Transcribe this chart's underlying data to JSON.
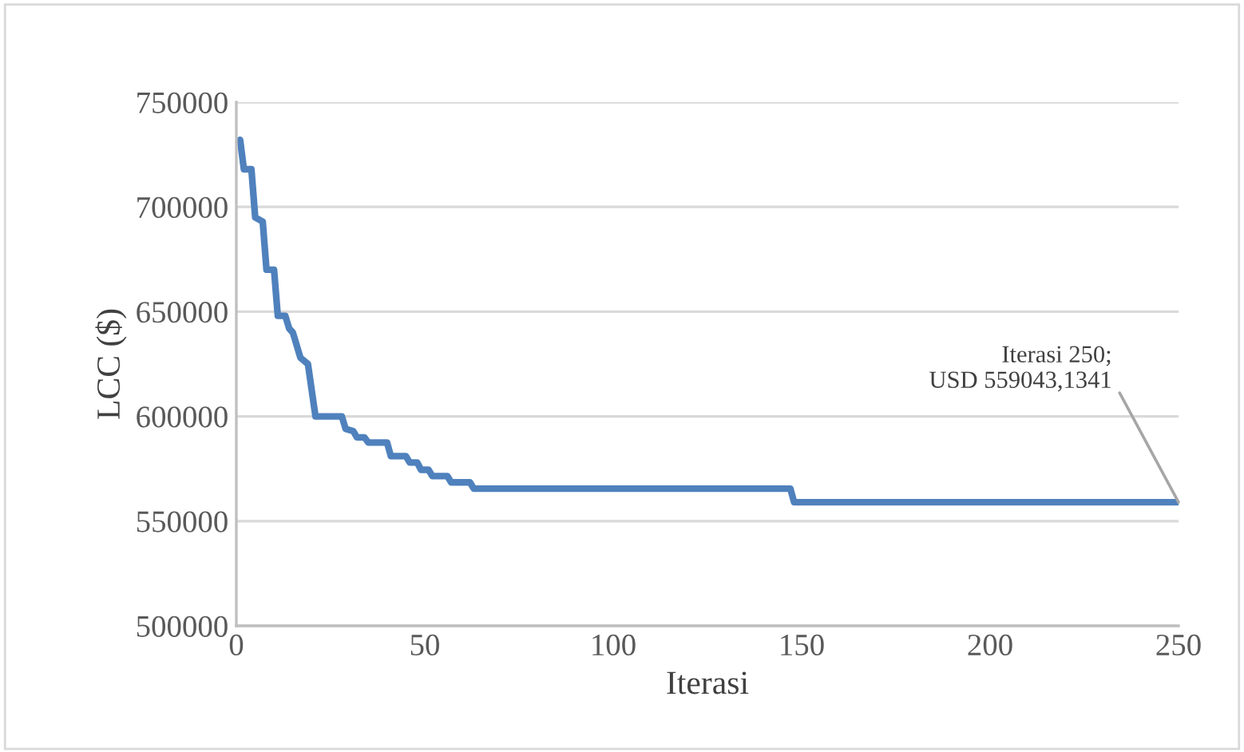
{
  "chart_data": {
    "type": "line",
    "xlabel": "Iterasi",
    "ylabel": "LCC ($)",
    "x": [
      1,
      2,
      4,
      5,
      7,
      8,
      10,
      11,
      13,
      14,
      15,
      17,
      19,
      21,
      28,
      29,
      31,
      32,
      34,
      35,
      40,
      41,
      45,
      46,
      48,
      49,
      51,
      52,
      56,
      57,
      62,
      63,
      147,
      148,
      250
    ],
    "series": [
      {
        "color": "#4f81bd",
        "values": [
          732000,
          718000,
          718000,
          695000,
          693000,
          670000,
          670000,
          648000,
          648000,
          642000,
          640000,
          628000,
          625000,
          600000,
          600000,
          594000,
          593000,
          590000,
          590000,
          587500,
          587500,
          581000,
          581000,
          578000,
          578000,
          574500,
          574500,
          571500,
          571500,
          568500,
          568500,
          565500,
          565500,
          559000,
          559000
        ]
      }
    ],
    "xlim": [
      0,
      250
    ],
    "xticks": [
      0,
      50,
      100,
      150,
      200,
      250
    ],
    "ylim": [
      500000,
      750000
    ],
    "yticks": [
      500000,
      550000,
      600000,
      650000,
      700000,
      750000
    ],
    "grid": "y",
    "legend": false,
    "marker": "none",
    "line_style": "solid",
    "annotations": [
      {
        "text": "Iterasi 250;\nUSD 559043,1341",
        "x": 250,
        "y": 559043
      }
    ]
  }
}
